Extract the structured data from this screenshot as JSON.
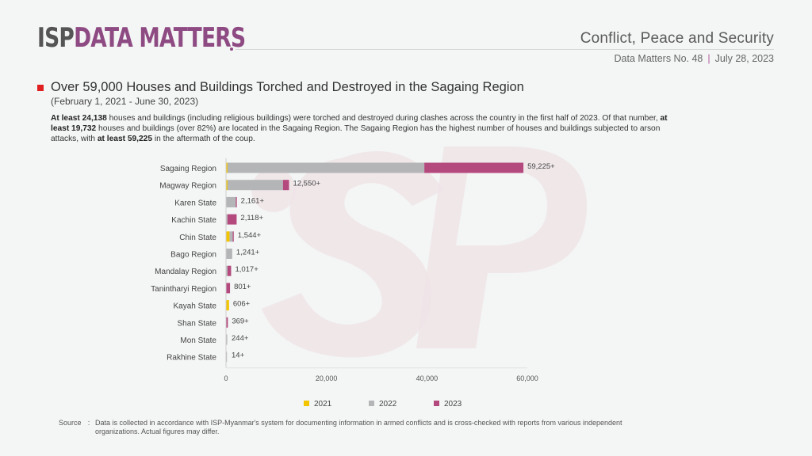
{
  "header": {
    "brand_prefix": "ISP",
    "brand_name": "DATA MATTERS",
    "section": "Conflict, Peace and Security",
    "issue": "Data Matters No. 48",
    "separator": "|",
    "date": "July 28, 2023"
  },
  "article": {
    "title": "Over 59,000 Houses and Buildings Torched and Destroyed in the Sagaing Region",
    "subtitle": "(February 1, 2021 - June 30, 2023)",
    "description": [
      {
        "text": "At least 24,138",
        "bold": true
      },
      {
        "text": " houses and buildings (including religious buildings) were torched and destroyed during clashes across the country in the first half of 2023. Of that number, ",
        "bold": false
      },
      {
        "text": "at least 19,732",
        "bold": true
      },
      {
        "text": " houses and buildings (over 82%) are located in the Sagaing Region. The Sagaing Region has the highest number of houses and buildings subjected to arson attacks, with ",
        "bold": false
      },
      {
        "text": "at least 59,225",
        "bold": true
      },
      {
        "text": " in the aftermath of the coup.",
        "bold": false
      }
    ]
  },
  "chart_data": {
    "type": "bar",
    "orientation": "horizontal",
    "stacked": true,
    "title": "Over 59,000 Houses and Buildings Torched and Destroyed in the Sagaing Region",
    "xlabel": "",
    "ylabel": "",
    "xlim": [
      0,
      60000
    ],
    "xticks": [
      0,
      20000,
      40000,
      60000
    ],
    "xtick_labels": [
      "0",
      "20,000",
      "40,000",
      "60,000"
    ],
    "grid": false,
    "legend_position": "bottom",
    "categories": [
      "Sagaing Region",
      "Magway Region",
      "Karen State",
      "Kachin State",
      "Chin State",
      "Bago Region",
      "Mandalay Region",
      "Tanintharyi Region",
      "Kayah State",
      "Shan State",
      "Mon State",
      "Rakhine State"
    ],
    "totals": [
      59225,
      12550,
      2161,
      2118,
      1544,
      1241,
      1017,
      801,
      606,
      369,
      244,
      14
    ],
    "total_labels": [
      "59,225+",
      "12,550+",
      "2,161+",
      "2,118+",
      "1,544+",
      "1,241+",
      "1,017+",
      "801+",
      "606+",
      "369+",
      "244+",
      "14+"
    ],
    "series": [
      {
        "name": "2021",
        "color": "#f2c500",
        "values": [
          300,
          300,
          0,
          0,
          700,
          0,
          0,
          0,
          606,
          0,
          0,
          0
        ]
      },
      {
        "name": "2022",
        "color": "#b4b5b7",
        "values": [
          39193,
          11050,
          1961,
          300,
          644,
          1241,
          317,
          0,
          0,
          69,
          244,
          14
        ]
      },
      {
        "name": "2023",
        "color": "#b4497e",
        "values": [
          19732,
          1200,
          200,
          1818,
          200,
          0,
          700,
          801,
          0,
          300,
          0,
          0
        ]
      }
    ]
  },
  "footer": {
    "source_label": "Source",
    "source_colon": ":",
    "source_text": "Data is collected in accordance with ISP-Myanmar's system for documenting information in armed conflicts and is cross-checked with reports from various independent organizations. Actual figures may differ."
  },
  "colors": {
    "brand_purple": "#8e4a82",
    "brand_gray": "#555556",
    "title_marker": "#e02020",
    "watermark": "#efe4e6"
  }
}
